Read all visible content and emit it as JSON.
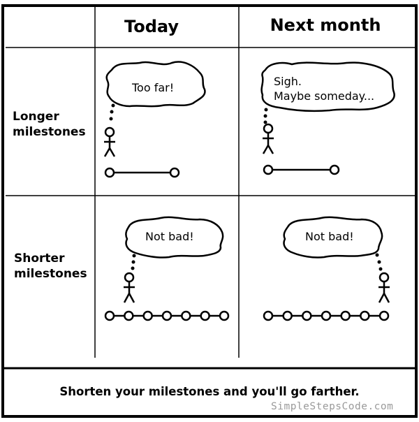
{
  "columns": [
    "Today",
    "Next month"
  ],
  "rows": [
    "Longer milestones",
    "Shorter milestones"
  ],
  "row_lines": [
    [
      "Longer",
      "milestones"
    ],
    [
      "Shorter",
      "milestones"
    ]
  ],
  "bubbles": {
    "long_today": "Too far!",
    "long_next": [
      "Sigh.",
      "Maybe someday..."
    ],
    "short_today": "Not bad!",
    "short_next": "Not bad!"
  },
  "caption": "Shorten your milestones and you'll go farther.",
  "credit": "SimpleStepsCode.com",
  "colors": {
    "ink": "#000000",
    "credit": "#9a9a9a",
    "background": "#ffffff"
  }
}
